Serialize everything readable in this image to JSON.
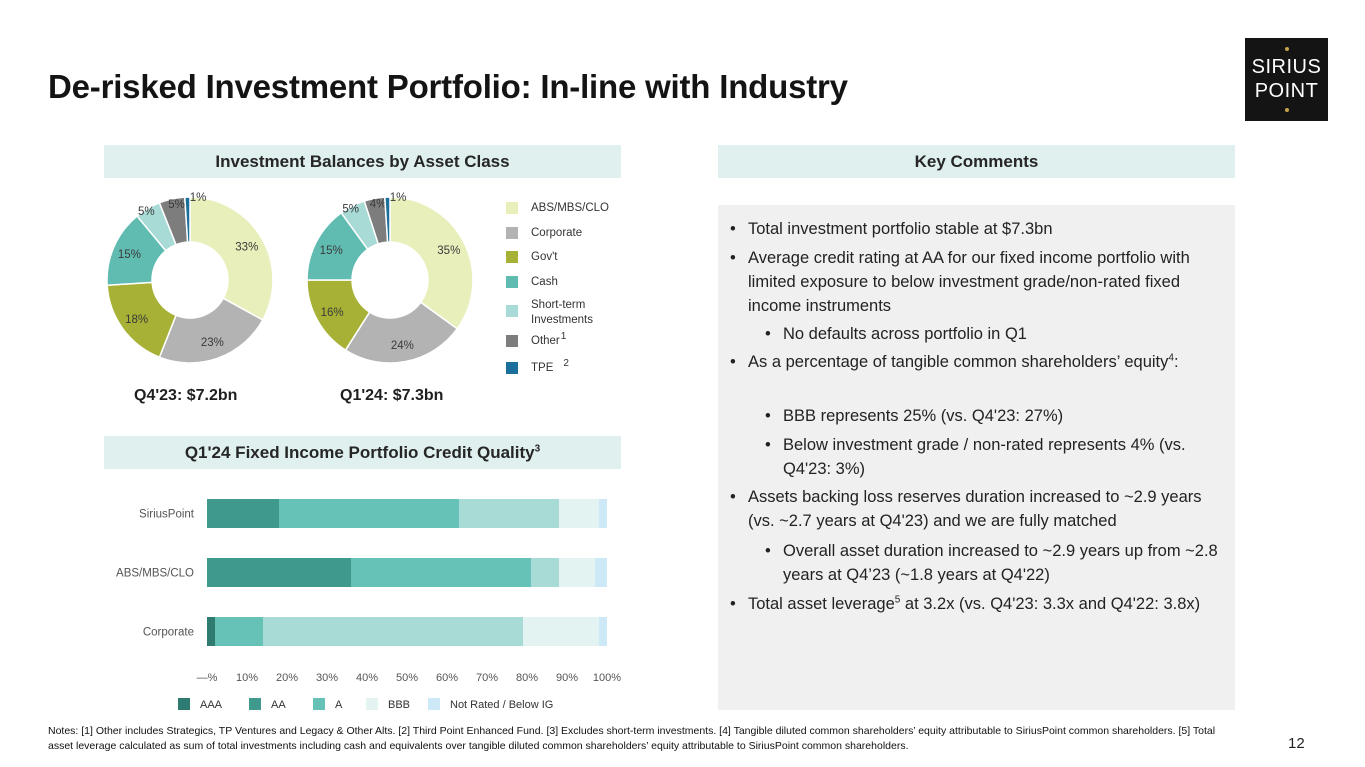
{
  "title": "De-risked Investment Portfolio: In-line with Industry",
  "logo": {
    "line1": "SIRIUS",
    "line2": "POINT"
  },
  "sections": {
    "balances": "Investment Balances by Asset Class",
    "credit_quality": "Q1'24 Fixed Income Portfolio Credit Quality",
    "credit_quality_sup": "3",
    "comments": "Key Comments"
  },
  "colors": {
    "ABS/MBS/CLO": "#e8efba",
    "Corporate": "#b3b3b3",
    "Gov't": "#a6b135",
    "Cash": "#60bcb1",
    "Short-term Investments": "#a8dad6",
    "Other": "#7d7d7d",
    "TPE": "#1b6f9b",
    "AAA": "#2f7b6f",
    "AA": "#3f9a8d",
    "A": "#66c2b7",
    "BBB": "#e2f3f1",
    "Not Rated / Below IG": "#cde9f7"
  },
  "legend": [
    {
      "label": "ABS/MBS/CLO",
      "sup": ""
    },
    {
      "label": "Corporate",
      "sup": ""
    },
    {
      "label": "Gov't",
      "sup": ""
    },
    {
      "label": "Cash",
      "sup": ""
    },
    {
      "label": "Short-term Investments",
      "sup": ""
    },
    {
      "label": "Other",
      "sup": "1"
    },
    {
      "label": "TPE",
      "sup": "2"
    }
  ],
  "chart_data": [
    {
      "type": "pie",
      "caption": "Q4'23: $7.2bn",
      "slices": [
        {
          "label": "ABS/MBS/CLO",
          "value": 33,
          "text": "33%"
        },
        {
          "label": "Corporate",
          "value": 23,
          "text": "23%"
        },
        {
          "label": "Gov't",
          "value": 18,
          "text": "18%"
        },
        {
          "label": "Cash",
          "value": 15,
          "text": "15%"
        },
        {
          "label": "Short-term Investments",
          "value": 5,
          "text": "5%"
        },
        {
          "label": "Other",
          "value": 5,
          "text": "5%"
        },
        {
          "label": "TPE",
          "value": 1,
          "text": "1%"
        }
      ]
    },
    {
      "type": "pie",
      "caption": "Q1'24: $7.3bn",
      "slices": [
        {
          "label": "ABS/MBS/CLO",
          "value": 35,
          "text": "35%"
        },
        {
          "label": "Corporate",
          "value": 24,
          "text": "24%"
        },
        {
          "label": "Gov't",
          "value": 16,
          "text": "16%"
        },
        {
          "label": "Cash",
          "value": 15,
          "text": "15%"
        },
        {
          "label": "Short-term Investments",
          "value": 5,
          "text": "5%"
        },
        {
          "label": "Other",
          "value": 4,
          "text": "4%"
        },
        {
          "label": "TPE",
          "value": 1,
          "text": "1%"
        }
      ]
    },
    {
      "type": "bar",
      "orientation": "horizontal",
      "stacked": true,
      "categories": [
        "SiriusPoint",
        "ABS/MBS/CLO",
        "Corporate"
      ],
      "series": [
        {
          "name": "AAA",
          "values": [
            0,
            0,
            2
          ]
        },
        {
          "name": "AA",
          "values": [
            18,
            36,
            0
          ]
        },
        {
          "name": "A",
          "values": [
            45,
            45,
            12
          ]
        },
        {
          "name": "BBB",
          "values": [
            25,
            7,
            65
          ]
        },
        {
          "name": "Not Rated / Below IG",
          "values": [
            10,
            9,
            19
          ]
        },
        {
          "name": "",
          "values": [
            2,
            3,
            2
          ]
        }
      ],
      "xlim": [
        0,
        100
      ],
      "x_ticks": [
        "—%",
        "10%",
        "20%",
        "30%",
        "40%",
        "50%",
        "60%",
        "70%",
        "80%",
        "90%",
        "100%"
      ]
    }
  ],
  "comments": [
    {
      "level": 1,
      "text": "Total investment portfolio stable at $7.3bn"
    },
    {
      "level": 1,
      "text": "Average credit rating at AA for our fixed income portfolio with limited exposure to below investment grade/non-rated fixed income instruments"
    },
    {
      "level": 2,
      "text": "No defaults across portfolio in Q1"
    },
    {
      "level": 1,
      "text": "As a percentage of tangible common shareholders’ equity",
      "sup": "4",
      "after": ":"
    },
    {
      "level": 2,
      "text": "BBB represents 25% (vs. Q4'23: 27%)"
    },
    {
      "level": 2,
      "text": "Below investment grade / non-rated represents 4% (vs. Q4'23: 3%)"
    },
    {
      "level": 1,
      "text": "Assets backing loss reserves duration increased to ~2.9 years (vs. ~2.7 years at Q4'23) and we are fully matched"
    },
    {
      "level": 2,
      "text": "Overall asset duration increased to ~2.9 years up from ~2.8 years at Q4’23 (~1.8 years at Q4'22)"
    },
    {
      "level": 1,
      "text": "Total asset leverage",
      "sup": "5",
      "after": " at 3.2x (vs. Q4'23: 3.3x and Q4'22: 3.8x)"
    }
  ],
  "footnotes": "Notes: [1] Other includes Strategics, TP Ventures and Legacy & Other Alts. [2] Third Point Enhanced Fund. [3] Excludes short-term investments. [4] Tangible diluted common shareholders’ equity attributable to SiriusPoint common shareholders. [5] Total asset leverage calculated as sum of total investments including cash and equivalents over tangible diluted common shareholders’ equity attributable to SiriusPoint common shareholders.",
  "page_number": "12"
}
